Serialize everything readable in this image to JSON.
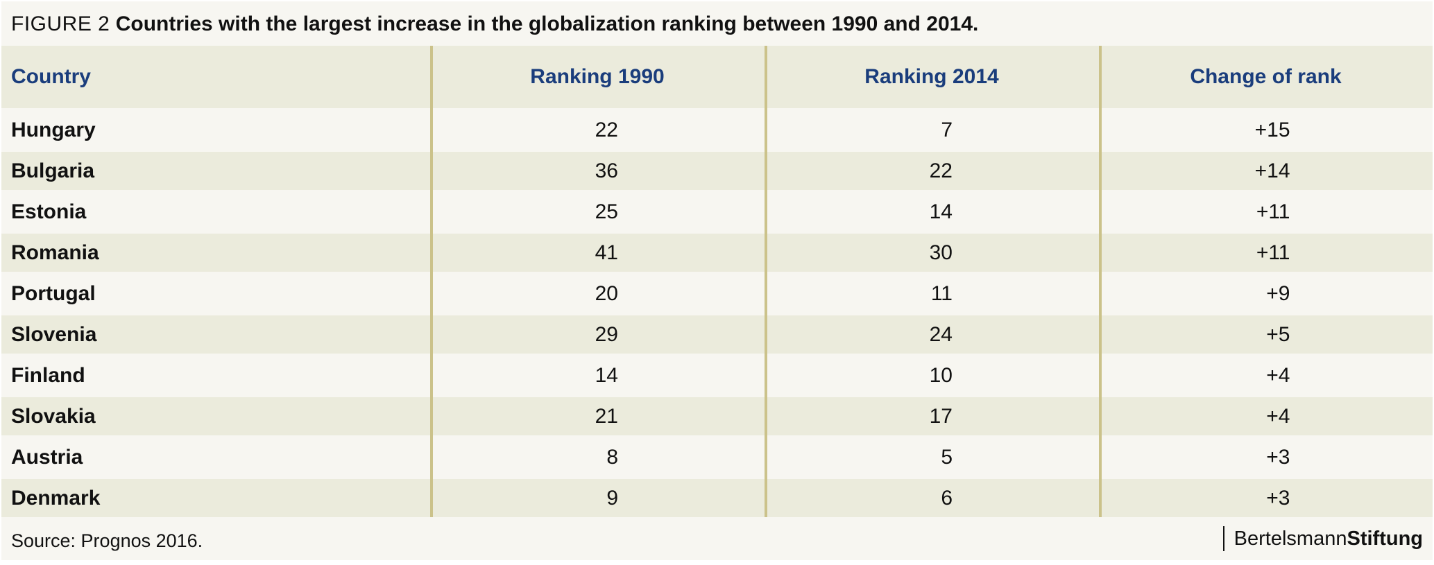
{
  "figure": {
    "label": "FIGURE 2",
    "title": "Countries with the largest increase in the globalization ranking between 1990 and 2014."
  },
  "chart_data": {
    "type": "table",
    "columns": [
      "Country",
      "Ranking 1990",
      "Ranking 2014",
      "Change of rank"
    ],
    "rows": [
      {
        "country": "Hungary",
        "rank_1990": "22",
        "rank_2014": "7",
        "change": "+15"
      },
      {
        "country": "Bulgaria",
        "rank_1990": "36",
        "rank_2014": "22",
        "change": "+14"
      },
      {
        "country": "Estonia",
        "rank_1990": "25",
        "rank_2014": "14",
        "change": "+11"
      },
      {
        "country": "Romania",
        "rank_1990": "41",
        "rank_2014": "30",
        "change": "+11"
      },
      {
        "country": "Portugal",
        "rank_1990": "20",
        "rank_2014": "11",
        "change": "+9"
      },
      {
        "country": "Slovenia",
        "rank_1990": "29",
        "rank_2014": "24",
        "change": "+5"
      },
      {
        "country": "Finland",
        "rank_1990": "14",
        "rank_2014": "10",
        "change": "+4"
      },
      {
        "country": "Slovakia",
        "rank_1990": "21",
        "rank_2014": "17",
        "change": "+4"
      },
      {
        "country": "Austria",
        "rank_1990": "8",
        "rank_2014": "5",
        "change": "+3"
      },
      {
        "country": "Denmark",
        "rank_1990": "9",
        "rank_2014": "6",
        "change": "+3"
      }
    ]
  },
  "footer": {
    "source": "Source: Prognos 2016.",
    "brand_part1": "Bertelsmann",
    "brand_part2": "Stiftung"
  },
  "colors": {
    "header_text": "#1a3d7c",
    "band_fill": "#ebebdc",
    "plain_fill": "#f7f6f1",
    "divider": "#cbc28a"
  }
}
